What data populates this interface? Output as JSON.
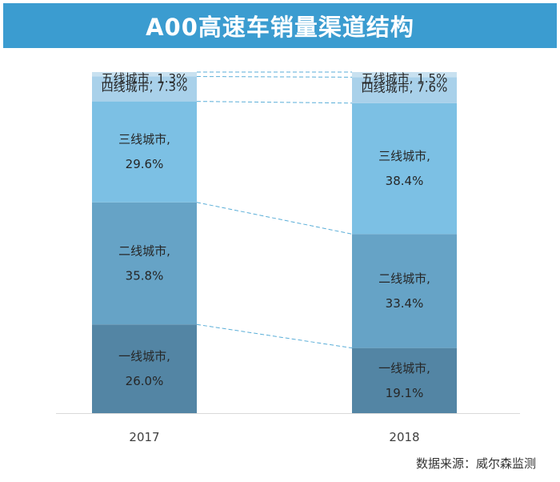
{
  "title": "A00高速车销量渠道结构",
  "source": "数据来源：威尔森监测",
  "chart_data": {
    "type": "bar",
    "stacked": true,
    "percent": true,
    "title": "A00高速车销量渠道结构",
    "categories": [
      "2017",
      "2018"
    ],
    "series": [
      {
        "name": "一线城市",
        "values": [
          26.0,
          19.1
        ],
        "color": "#5385a4"
      },
      {
        "name": "二线城市",
        "values": [
          35.8,
          33.4
        ],
        "color": "#66a3c6"
      },
      {
        "name": "三线城市",
        "values": [
          29.6,
          38.4
        ],
        "color": "#7cc0e4"
      },
      {
        "name": "四线城市",
        "values": [
          7.3,
          7.6
        ],
        "color": "#a9d1ea"
      },
      {
        "name": "五线城市",
        "values": [
          1.3,
          1.5
        ],
        "color": "#c8e1f0"
      }
    ],
    "labels": {
      "2017": [
        "一线城市,|26.0%",
        "二线城市,|35.8%",
        "三线城市,|29.6%",
        "四线城市, 7.3%",
        "五线城市, 1.3%"
      ],
      "2018": [
        "一线城市,|19.1%",
        "二线城市,|33.4%",
        "三线城市,|38.4%",
        "四线城市, 7.6%",
        "五线城市, 1.5%"
      ]
    },
    "connector_color": "#5aaed8",
    "ylim": [
      0,
      100
    ],
    "legend": "none",
    "grid": false
  }
}
